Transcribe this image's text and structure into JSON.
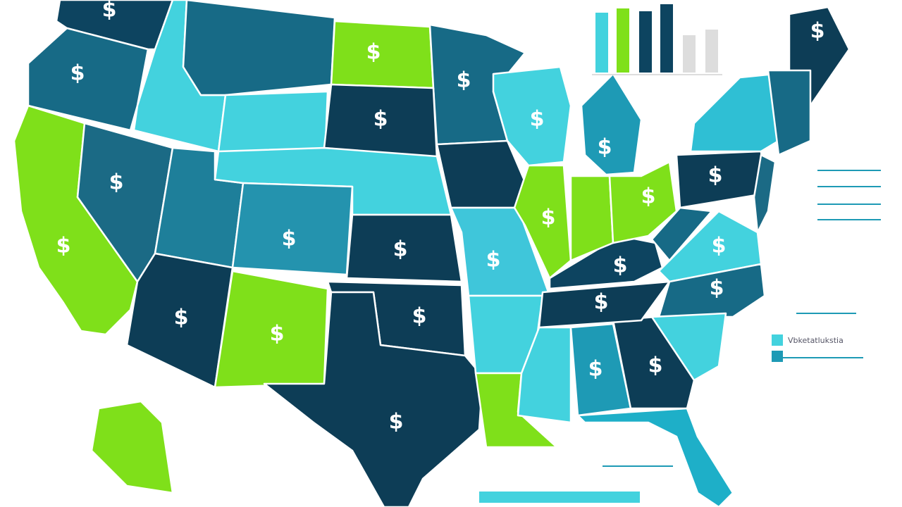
{
  "map": {
    "state_labels": [
      "$",
      "$",
      "$",
      "$",
      "$",
      "$",
      "$",
      "$",
      "$",
      "$",
      "$",
      "$",
      "$",
      "$",
      "$",
      "$",
      "$",
      "$",
      "$",
      "$",
      "$",
      "$",
      "$",
      "$",
      "$",
      "$"
    ]
  },
  "legend": {
    "label": "Vbketatlukstia"
  }
}
